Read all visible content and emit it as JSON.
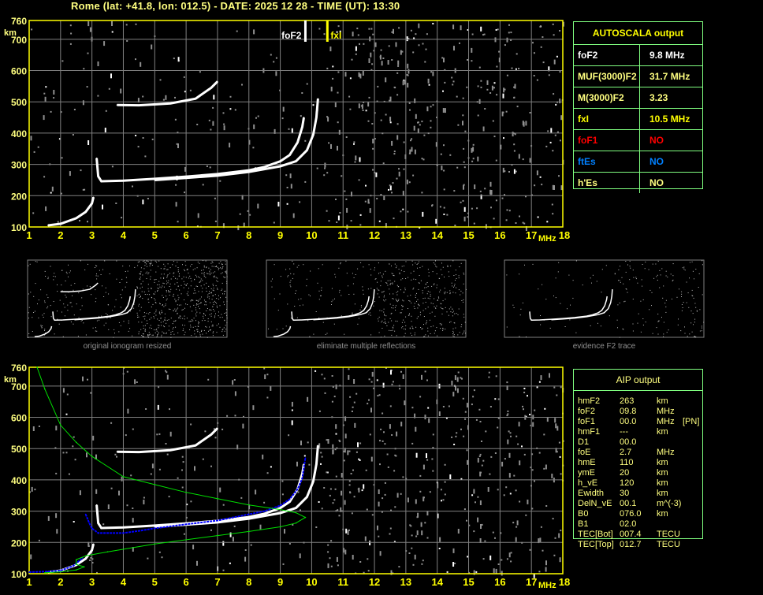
{
  "header": {
    "title": "Rome (lat: +41.8, lon: 012.5) - DATE: 2025 12 28 - TIME (UT): 13:30"
  },
  "colors": {
    "axis": "#ffff00",
    "label": "#ffff80",
    "grid": "#808080",
    "echo": "#ffffff",
    "noise": "#909090",
    "table_border": "#80ff80",
    "aip_trace": "#0000ff",
    "profile": "#00e000",
    "foF1": "#ff0000",
    "ftEs": "#0080ff"
  },
  "autoscala": {
    "title": "AUTOSCALA output",
    "rows": [
      {
        "key": "foF2",
        "value": "9.8 MHz",
        "color": "#ffffff"
      },
      {
        "key": "MUF(3000)F2",
        "value": "31.7 MHz",
        "color": "#ffff80"
      },
      {
        "key": "M(3000)F2",
        "value": "3.23",
        "color": "#ffff80"
      },
      {
        "key": "fxI",
        "value": "10.5 MHz",
        "color": "#ffff00"
      },
      {
        "key": "foF1",
        "value": "NO",
        "color": "#ff0000"
      },
      {
        "key": "ftEs",
        "value": "NO",
        "color": "#0080ff"
      },
      {
        "key": "h'Es",
        "value": "NO",
        "color": "#ffff80"
      }
    ]
  },
  "aip": {
    "title": "AIP output",
    "rows": [
      {
        "name": "hmF2",
        "value": "263",
        "unit": "km",
        "note": ""
      },
      {
        "name": "foF2",
        "value": "09.8",
        "unit": "MHz",
        "note": ""
      },
      {
        "name": "foF1",
        "value": "00.0",
        "unit": "MHz",
        "note": "[PN]"
      },
      {
        "name": "hmF1",
        "value": "---",
        "unit": "km",
        "note": ""
      },
      {
        "name": "D1",
        "value": "00.0",
        "unit": "",
        "note": ""
      },
      {
        "name": "foE",
        "value": "2.7",
        "unit": "MHz",
        "note": ""
      },
      {
        "name": "hmE",
        "value": "110",
        "unit": "km",
        "note": ""
      },
      {
        "name": "ymE",
        "value": "20",
        "unit": "km",
        "note": ""
      },
      {
        "name": "h_vE",
        "value": "120",
        "unit": "km",
        "note": ""
      },
      {
        "name": "Ewidth",
        "value": "30",
        "unit": "km",
        "note": ""
      },
      {
        "name": "DelN_vE",
        "value": "00.1",
        "unit": "m^(-3)",
        "note": ""
      },
      {
        "name": "B0",
        "value": "076.0",
        "unit": "km",
        "note": ""
      },
      {
        "name": "B1",
        "value": "02.0",
        "unit": "",
        "note": ""
      },
      {
        "name": "TEC[Bot]",
        "value": "007.4",
        "unit": "TECU",
        "note": ""
      },
      {
        "name": "TEC[Top]",
        "value": "012.7",
        "unit": "TECU",
        "note": ""
      }
    ]
  },
  "thumbnails": [
    {
      "caption": "original ionogram resized"
    },
    {
      "caption": "eliminate multiple reflections"
    },
    {
      "caption": "evidence F2 trace"
    }
  ],
  "chart_data": [
    {
      "type": "scatter",
      "title": "",
      "xlabel": "MHz",
      "ylabel": "km",
      "xlim": [
        1,
        18
      ],
      "ylim": [
        100,
        760
      ],
      "xticks": [
        "1",
        "2",
        "3",
        "4",
        "5",
        "6",
        "7",
        "8",
        "9",
        "10",
        "11",
        "12",
        "13",
        "14",
        "15",
        "16",
        "17",
        "18"
      ],
      "yticks": [
        "100",
        "200",
        "300",
        "400",
        "500",
        "600",
        "700",
        "760"
      ],
      "grid": true,
      "markers": [
        {
          "label": "foF2",
          "x": 9.8,
          "color": "#ffffff"
        },
        {
          "label": "fxI",
          "x": 10.5,
          "color": "#ffff00"
        }
      ],
      "series": [
        {
          "color": "#ffffff",
          "points": [
            [
              3.15,
              320
            ],
            [
              3.2,
              262
            ],
            [
              3.3,
              246
            ],
            [
              4,
              248
            ],
            [
              5,
              254
            ],
            [
              6,
              261
            ],
            [
              7,
              269
            ],
            [
              8,
              281
            ],
            [
              8.5,
              292
            ],
            [
              9,
              310
            ],
            [
              9.3,
              330
            ],
            [
              9.55,
              370
            ],
            [
              9.7,
              420
            ],
            [
              9.75,
              450
            ]
          ]
        },
        {
          "color": "#ffffff",
          "points": [
            [
              5,
              250
            ],
            [
              6,
              257
            ],
            [
              7,
              264
            ],
            [
              8,
              276
            ],
            [
              9,
              294
            ],
            [
              9.5,
              310
            ],
            [
              9.85,
              345
            ],
            [
              10.05,
              395
            ],
            [
              10.15,
              450
            ],
            [
              10.2,
              510
            ]
          ]
        },
        {
          "color": "#ffffff",
          "points": [
            [
              1.6,
              105
            ],
            [
              2,
              110
            ],
            [
              2.5,
              128
            ],
            [
              2.8,
              148
            ],
            [
              3.0,
              175
            ],
            [
              3.05,
              195
            ]
          ]
        },
        {
          "color": "#ffffff",
          "points": [
            [
              3.8,
              490
            ],
            [
              4.5,
              489
            ],
            [
              5.5,
              495
            ],
            [
              6.3,
              510
            ],
            [
              6.8,
              545
            ],
            [
              7,
              565
            ]
          ]
        }
      ]
    },
    {
      "type": "scatter",
      "title": "",
      "xlabel": "MHz",
      "ylabel": "km",
      "xlim": [
        1,
        18
      ],
      "ylim": [
        100,
        760
      ],
      "xticks": [
        "1",
        "2",
        "3",
        "4",
        "5",
        "6",
        "7",
        "8",
        "9",
        "10",
        "11",
        "12",
        "13",
        "14",
        "15",
        "16",
        "17",
        "18"
      ],
      "yticks": [
        "100",
        "200",
        "300",
        "400",
        "500",
        "600",
        "700",
        "760"
      ],
      "grid": true,
      "series": [
        {
          "color": "#ffffff",
          "points": [
            [
              3.15,
              320
            ],
            [
              3.2,
              262
            ],
            [
              3.3,
              246
            ],
            [
              4,
              248
            ],
            [
              5,
              254
            ],
            [
              6,
              261
            ],
            [
              7,
              269
            ],
            [
              8,
              281
            ],
            [
              8.5,
              292
            ],
            [
              9,
              310
            ],
            [
              9.3,
              330
            ],
            [
              9.55,
              370
            ],
            [
              9.7,
              420
            ],
            [
              9.75,
              450
            ]
          ]
        },
        {
          "color": "#ffffff",
          "points": [
            [
              5,
              250
            ],
            [
              6,
              257
            ],
            [
              7,
              264
            ],
            [
              8,
              276
            ],
            [
              9,
              294
            ],
            [
              9.5,
              310
            ],
            [
              9.85,
              345
            ],
            [
              10.05,
              395
            ],
            [
              10.15,
              450
            ],
            [
              10.2,
              510
            ]
          ]
        },
        {
          "color": "#ffffff",
          "points": [
            [
              1.6,
              105
            ],
            [
              2,
              110
            ],
            [
              2.5,
              128
            ],
            [
              2.8,
              148
            ],
            [
              3.0,
              175
            ],
            [
              3.05,
              195
            ]
          ]
        },
        {
          "color": "#ffffff",
          "points": [
            [
              3.8,
              490
            ],
            [
              4.5,
              489
            ],
            [
              5.5,
              495
            ],
            [
              6.3,
              510
            ],
            [
              6.8,
              545
            ],
            [
              7,
              565
            ]
          ]
        },
        {
          "color": "#0000ff",
          "points": [
            [
              1,
              105
            ],
            [
              1.6,
              107
            ],
            [
              2,
              110
            ],
            [
              2.4,
              125
            ],
            [
              2.7,
              150
            ]
          ]
        },
        {
          "color": "#0000ff",
          "points": [
            [
              2.8,
              290
            ],
            [
              2.9,
              265
            ],
            [
              3.0,
              245
            ],
            [
              3.2,
              230
            ],
            [
              4,
              230
            ],
            [
              4.5,
              237
            ],
            [
              5,
              245
            ],
            [
              6,
              258
            ],
            [
              7,
              270
            ],
            [
              8,
              290
            ],
            [
              8.5,
              300
            ],
            [
              9,
              318
            ],
            [
              9.3,
              338
            ],
            [
              9.55,
              370
            ],
            [
              9.7,
              405
            ],
            [
              9.8,
              470
            ]
          ]
        },
        {
          "color": "#00e000",
          "points": [
            [
              1.5,
              103
            ],
            [
              2,
              106
            ],
            [
              2.5,
              112
            ],
            [
              2.75,
              122
            ],
            [
              2.5,
              130
            ],
            [
              2.5,
              145
            ],
            [
              2.8,
              157
            ],
            [
              3.5,
              170
            ],
            [
              5,
              195
            ],
            [
              7,
              222
            ],
            [
              8,
              235
            ],
            [
              9,
              250
            ],
            [
              9.5,
              262
            ],
            [
              9.8,
              280
            ],
            [
              9.5,
              295
            ],
            [
              9,
              305
            ],
            [
              8,
              320
            ],
            [
              7,
              340
            ],
            [
              6,
              360
            ],
            [
              5,
              385
            ],
            [
              4,
              410
            ],
            [
              3,
              475
            ],
            [
              2.5,
              520
            ],
            [
              2,
              575
            ],
            [
              1.5,
              690
            ],
            [
              1.25,
              760
            ]
          ]
        }
      ]
    }
  ]
}
